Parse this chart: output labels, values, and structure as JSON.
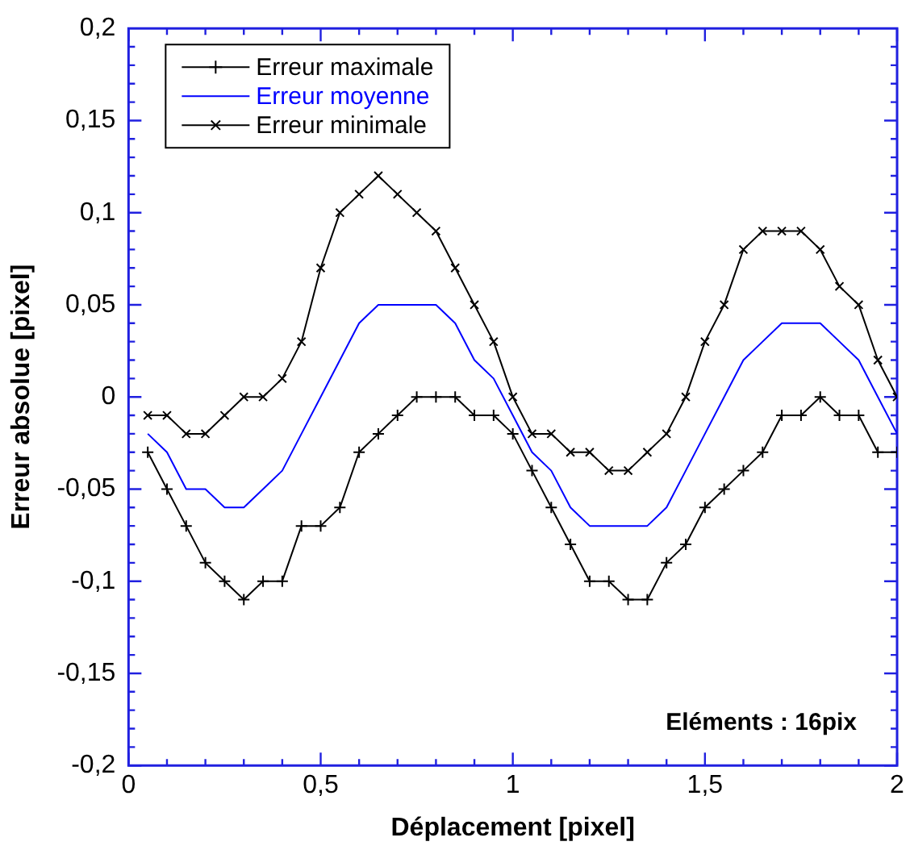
{
  "chart_data": {
    "type": "line",
    "xlabel": "Déplacement [pixel]",
    "ylabel": "Erreur absolue [pixel]",
    "x": [
      0.05,
      0.1,
      0.15,
      0.2,
      0.25,
      0.3,
      0.35,
      0.4,
      0.45,
      0.5,
      0.55,
      0.6,
      0.65,
      0.7,
      0.75,
      0.8,
      0.85,
      0.9,
      0.95,
      1.0,
      1.05,
      1.1,
      1.15,
      1.2,
      1.25,
      1.3,
      1.35,
      1.4,
      1.45,
      1.5,
      1.55,
      1.6,
      1.65,
      1.7,
      1.75,
      1.8,
      1.85,
      1.9,
      1.95,
      2.0
    ],
    "series": [
      {
        "name": "Erreur maximale",
        "color": "#000000",
        "marker": "cross",
        "values": [
          -0.03,
          -0.05,
          -0.07,
          -0.09,
          -0.1,
          -0.11,
          -0.1,
          -0.1,
          -0.07,
          -0.07,
          -0.06,
          -0.03,
          -0.02,
          -0.01,
          0,
          0,
          0,
          -0.01,
          -0.01,
          -0.02,
          -0.04,
          -0.06,
          -0.08,
          -0.1,
          -0.1,
          -0.11,
          -0.11,
          -0.09,
          -0.08,
          -0.06,
          -0.05,
          -0.04,
          -0.03,
          -0.01,
          -0.01,
          0,
          -0.01,
          -0.01,
          -0.03,
          -0.03
        ]
      },
      {
        "name": "Erreur moyenne",
        "color": "#0000ff",
        "marker": "none",
        "values": [
          -0.02,
          -0.03,
          -0.05,
          -0.05,
          -0.06,
          -0.06,
          -0.05,
          -0.04,
          -0.02,
          0,
          0.02,
          0.04,
          0.05,
          0.05,
          0.05,
          0.05,
          0.04,
          0.02,
          0.01,
          -0.01,
          -0.03,
          -0.04,
          -0.06,
          -0.07,
          -0.07,
          -0.07,
          -0.07,
          -0.06,
          -0.04,
          -0.02,
          0,
          0.02,
          0.03,
          0.04,
          0.04,
          0.04,
          0.03,
          0.02,
          0,
          -0.02
        ]
      },
      {
        "name": "Erreur minimale",
        "color": "#000000",
        "marker": "x",
        "values": [
          -0.01,
          -0.01,
          -0.02,
          -0.02,
          -0.01,
          0,
          0,
          0.01,
          0.03,
          0.07,
          0.1,
          0.11,
          0.12,
          0.11,
          0.1,
          0.09,
          0.07,
          0.05,
          0.03,
          0,
          -0.02,
          -0.02,
          -0.03,
          -0.03,
          -0.04,
          -0.04,
          -0.03,
          -0.02,
          0,
          0.03,
          0.05,
          0.08,
          0.09,
          0.09,
          0.09,
          0.08,
          0.06,
          0.05,
          0.02,
          0
        ]
      }
    ],
    "xlim": [
      0,
      2
    ],
    "xticks": [
      0,
      {
        "value": 0.1,
        "label": null
      },
      {
        "value": 0.2,
        "label": null
      },
      {
        "value": 0.3,
        "label": null
      },
      {
        "value": 0.4,
        "label": null
      },
      {
        "value": 0.5,
        "label": "0,5"
      },
      {
        "value": 0.6,
        "label": null
      },
      {
        "value": 0.7,
        "label": null
      },
      {
        "value": 0.8,
        "label": null
      },
      {
        "value": 0.9,
        "label": null
      },
      1,
      {
        "value": 1.1,
        "label": null
      },
      {
        "value": 1.2,
        "label": null
      },
      {
        "value": 1.3,
        "label": null
      },
      {
        "value": 1.4,
        "label": null
      },
      {
        "value": 1.5,
        "label": "1,5"
      },
      {
        "value": 1.6,
        "label": null
      },
      {
        "value": 1.7,
        "label": null
      },
      {
        "value": 1.8,
        "label": null
      },
      {
        "value": 1.9,
        "label": null
      },
      2
    ],
    "ylim": [
      -0.2,
      0.2
    ],
    "yticks": [
      {
        "value": -0.2,
        "label": "-0,2"
      },
      {
        "value": -0.15,
        "label": "-0,15"
      },
      {
        "value": -0.1,
        "label": "-0,1"
      },
      {
        "value": -0.05,
        "label": "-0,05"
      },
      0,
      {
        "value": 0.05,
        "label": "0,05"
      },
      {
        "value": 0.1,
        "label": "0,1"
      },
      {
        "value": 0.15,
        "label": "0,15"
      },
      {
        "value": 0.2,
        "label": "0,2"
      }
    ],
    "annotations": [
      "Eléments : 16pix"
    ],
    "legend": "top left",
    "grid": false,
    "line_style": "solid"
  }
}
